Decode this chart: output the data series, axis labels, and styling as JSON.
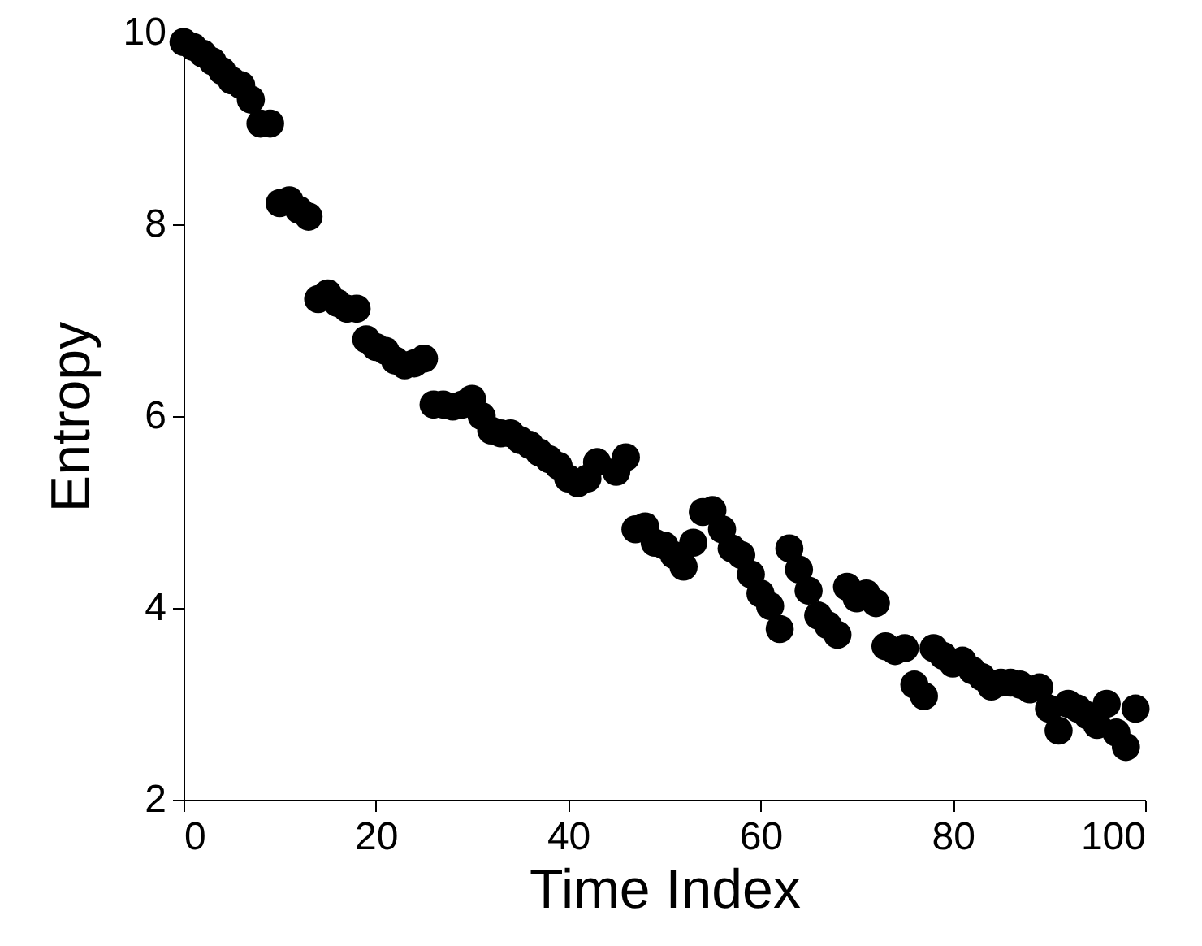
{
  "chart_data": {
    "type": "scatter",
    "xlabel": "Time Index",
    "ylabel": "Entropy",
    "color": "#000000",
    "marker": "circle",
    "grid": false,
    "x": [
      0,
      1,
      2,
      3,
      4,
      5,
      6,
      7,
      8,
      9,
      10,
      11,
      12,
      13,
      14,
      15,
      16,
      17,
      18,
      19,
      20,
      21,
      22,
      23,
      24,
      25,
      26,
      27,
      28,
      29,
      30,
      31,
      32,
      33,
      34,
      35,
      36,
      37,
      38,
      39,
      40,
      41,
      42,
      43,
      44,
      45,
      46,
      47,
      48,
      49,
      50,
      51,
      52,
      53,
      54,
      55,
      56,
      57,
      58,
      59,
      60,
      61,
      62,
      63,
      64,
      65,
      66,
      67,
      68,
      69,
      70,
      71,
      72,
      73,
      74,
      75,
      76,
      77,
      78,
      79,
      80,
      81,
      82,
      83,
      84,
      85,
      86,
      87,
      88,
      89,
      90,
      91,
      92,
      93,
      94,
      95,
      96,
      97,
      98,
      99
    ],
    "values": [
      9.9,
      9.85,
      9.78,
      9.7,
      9.6,
      9.5,
      9.45,
      9.3,
      9.05,
      9.05,
      8.22,
      8.25,
      8.15,
      8.08,
      7.22,
      7.28,
      7.18,
      7.12,
      7.12,
      6.8,
      6.72,
      6.68,
      6.58,
      6.53,
      6.55,
      6.6,
      6.12,
      6.12,
      6.1,
      6.12,
      6.18,
      6.0,
      5.85,
      5.82,
      5.82,
      5.75,
      5.7,
      5.62,
      5.55,
      5.48,
      5.35,
      5.3,
      5.35,
      5.52,
      null,
      5.42,
      5.57,
      4.82,
      4.85,
      4.68,
      4.65,
      4.55,
      4.43,
      4.68,
      5.0,
      5.02,
      4.82,
      4.62,
      4.55,
      4.35,
      4.15,
      4.02,
      3.78,
      4.62,
      4.4,
      4.18,
      3.92,
      3.82,
      3.72,
      4.22,
      4.1,
      4.15,
      4.05,
      3.6,
      3.55,
      3.58,
      3.2,
      3.08,
      3.58,
      3.5,
      3.42,
      3.45,
      3.35,
      3.28,
      3.18,
      3.22,
      3.22,
      3.2,
      3.15,
      3.17,
      2.95,
      2.72,
      3.0,
      2.95,
      2.88,
      2.78,
      3.0,
      2.7,
      2.55,
      2.95
    ],
    "xlim": [
      0,
      100
    ],
    "ylim": [
      2,
      10
    ],
    "xticks": [
      0,
      20,
      40,
      60,
      80,
      100
    ],
    "yticks": [
      2,
      4,
      6,
      8,
      10
    ]
  }
}
